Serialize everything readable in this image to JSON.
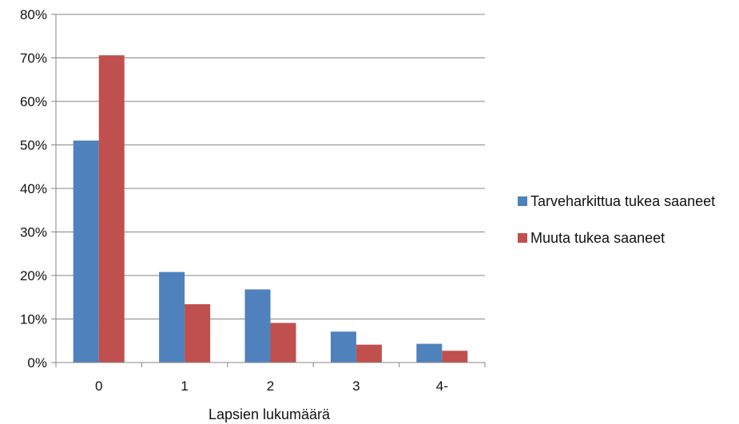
{
  "chart_data": {
    "type": "bar",
    "categories": [
      "0",
      "1",
      "2",
      "3",
      "4-"
    ],
    "series": [
      {
        "name": "Tarveharkittua tukea saaneet",
        "values": [
          51,
          20.8,
          16.8,
          7.1,
          4.3
        ],
        "color": "#4f81bd"
      },
      {
        "name": "Muuta tukea saaneet",
        "values": [
          70.6,
          13.4,
          9.1,
          4.1,
          2.7
        ],
        "color": "#c0504d"
      }
    ],
    "title": "",
    "xlabel": "Lapsien lukumäärä",
    "ylabel": "",
    "ylim": [
      0,
      80
    ],
    "yticks": [
      "0%",
      "10%",
      "20%",
      "30%",
      "40%",
      "50%",
      "60%",
      "70%",
      "80%"
    ],
    "grid": true,
    "legend": "right",
    "gridline_color": "#868686"
  }
}
